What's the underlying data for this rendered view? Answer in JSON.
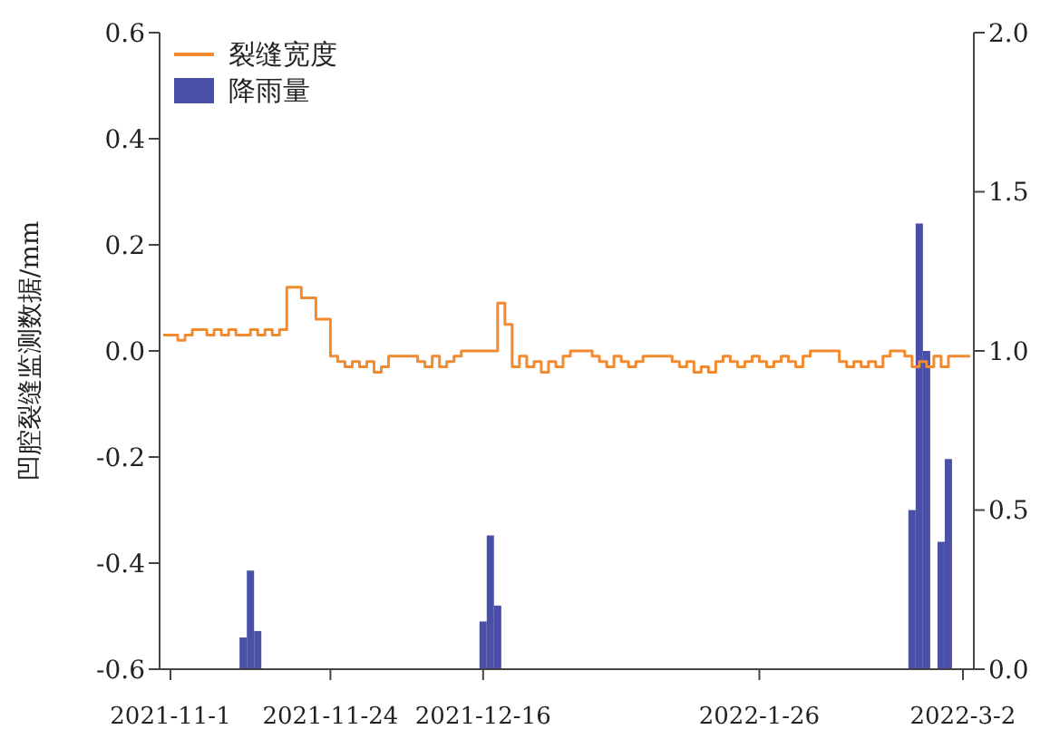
{
  "chart_data": {
    "type": "step",
    "ylabel": "凹腔裂缝监测数据/mm",
    "legend": "top left",
    "categories": [
      null,
      "2021-11-1",
      null,
      null,
      null,
      null,
      null,
      null,
      null,
      null,
      null,
      null,
      null,
      null,
      null,
      null,
      null,
      null,
      null,
      null,
      null,
      null,
      null,
      "2021-11-24",
      null,
      null,
      null,
      null,
      null,
      null,
      null,
      null,
      null,
      null,
      null,
      null,
      null,
      null,
      null,
      null,
      null,
      null,
      null,
      null,
      "2021-12-16",
      null,
      null,
      null,
      null,
      null,
      null,
      null,
      null,
      null,
      null,
      null,
      null,
      null,
      null,
      null,
      null,
      null,
      null,
      null,
      null,
      null,
      null,
      null,
      null,
      null,
      null,
      null,
      null,
      null,
      null,
      null,
      null,
      null,
      null,
      null,
      null,
      null,
      "2022-1-26",
      null,
      null,
      null,
      null,
      null,
      null,
      null,
      null,
      null,
      null,
      null,
      null,
      null,
      null,
      null,
      null,
      null,
      null,
      null,
      null,
      null,
      null,
      null,
      null,
      null,
      null,
      null,
      "2022-3-2",
      null
    ],
    "ylim": [
      -0.6,
      0.6
    ],
    "yticks": [
      -0.6,
      -0.4,
      -0.2,
      {
        "value": 0,
        "label": "0.0"
      },
      0.2,
      0.4,
      0.6
    ],
    "y2lim": [
      0,
      2
    ],
    "y2ticks": [
      {
        "value": 0,
        "label": "0.0"
      },
      0.5,
      {
        "value": 1,
        "label": "1.0"
      },
      1.5,
      {
        "value": 2,
        "label": "2.0"
      }
    ],
    "series": [
      {
        "name": "裂缝宽度",
        "color": "#f28a30",
        "values": [
          0.03,
          0.03,
          0.02,
          0.03,
          0.04,
          0.04,
          0.03,
          0.04,
          0.03,
          0.04,
          0.03,
          0.03,
          0.04,
          0.03,
          0.04,
          0.03,
          0.04,
          0.12,
          0.12,
          0.1,
          0.1,
          0.06,
          0.06,
          -0.01,
          -0.02,
          -0.03,
          -0.02,
          -0.03,
          -0.02,
          -0.04,
          -0.03,
          -0.01,
          -0.01,
          -0.01,
          -0.01,
          -0.02,
          -0.03,
          -0.01,
          -0.03,
          -0.02,
          -0.01,
          0.0,
          0.0,
          0.0,
          0.0,
          0.0,
          0.09,
          0.05,
          -0.03,
          -0.01,
          -0.03,
          -0.02,
          -0.04,
          -0.02,
          -0.03,
          -0.01,
          0.0,
          0.0,
          0.0,
          -0.01,
          -0.02,
          -0.03,
          -0.01,
          -0.02,
          -0.03,
          -0.02,
          -0.01,
          -0.01,
          -0.01,
          -0.01,
          -0.02,
          -0.03,
          -0.02,
          -0.04,
          -0.03,
          -0.04,
          -0.02,
          -0.01,
          -0.02,
          -0.03,
          -0.02,
          -0.01,
          -0.02,
          -0.03,
          -0.02,
          -0.01,
          -0.02,
          -0.03,
          -0.01,
          0.0,
          0.0,
          0.0,
          0.0,
          -0.02,
          -0.03,
          -0.02,
          -0.03,
          -0.02,
          -0.03,
          -0.01,
          0.0,
          0.0,
          -0.01,
          -0.03,
          -0.02,
          -0.03,
          -0.01,
          -0.03,
          -0.01,
          -0.01,
          -0.01,
          -0.01
        ]
      },
      {
        "name": "降雨量",
        "type": "bar",
        "axis": "y2",
        "color": "#4a4fa8",
        "values": [
          null,
          null,
          null,
          null,
          null,
          null,
          null,
          null,
          null,
          null,
          null,
          0.1,
          0.31,
          0.12,
          null,
          null,
          null,
          null,
          null,
          null,
          null,
          null,
          null,
          null,
          null,
          null,
          null,
          null,
          null,
          null,
          null,
          null,
          null,
          null,
          null,
          null,
          null,
          null,
          null,
          null,
          null,
          null,
          null,
          null,
          0.15,
          0.42,
          0.2,
          null,
          null,
          null,
          null,
          null,
          null,
          null,
          null,
          null,
          null,
          null,
          null,
          null,
          null,
          null,
          null,
          null,
          null,
          null,
          null,
          null,
          null,
          null,
          null,
          null,
          null,
          null,
          null,
          null,
          null,
          null,
          null,
          null,
          null,
          null,
          null,
          null,
          null,
          null,
          null,
          null,
          null,
          null,
          null,
          null,
          null,
          null,
          null,
          null,
          null,
          null,
          null,
          null,
          null,
          null,
          null,
          0.5,
          1.4,
          1.0,
          null,
          0.4,
          0.66,
          null,
          null,
          null
        ]
      }
    ]
  }
}
